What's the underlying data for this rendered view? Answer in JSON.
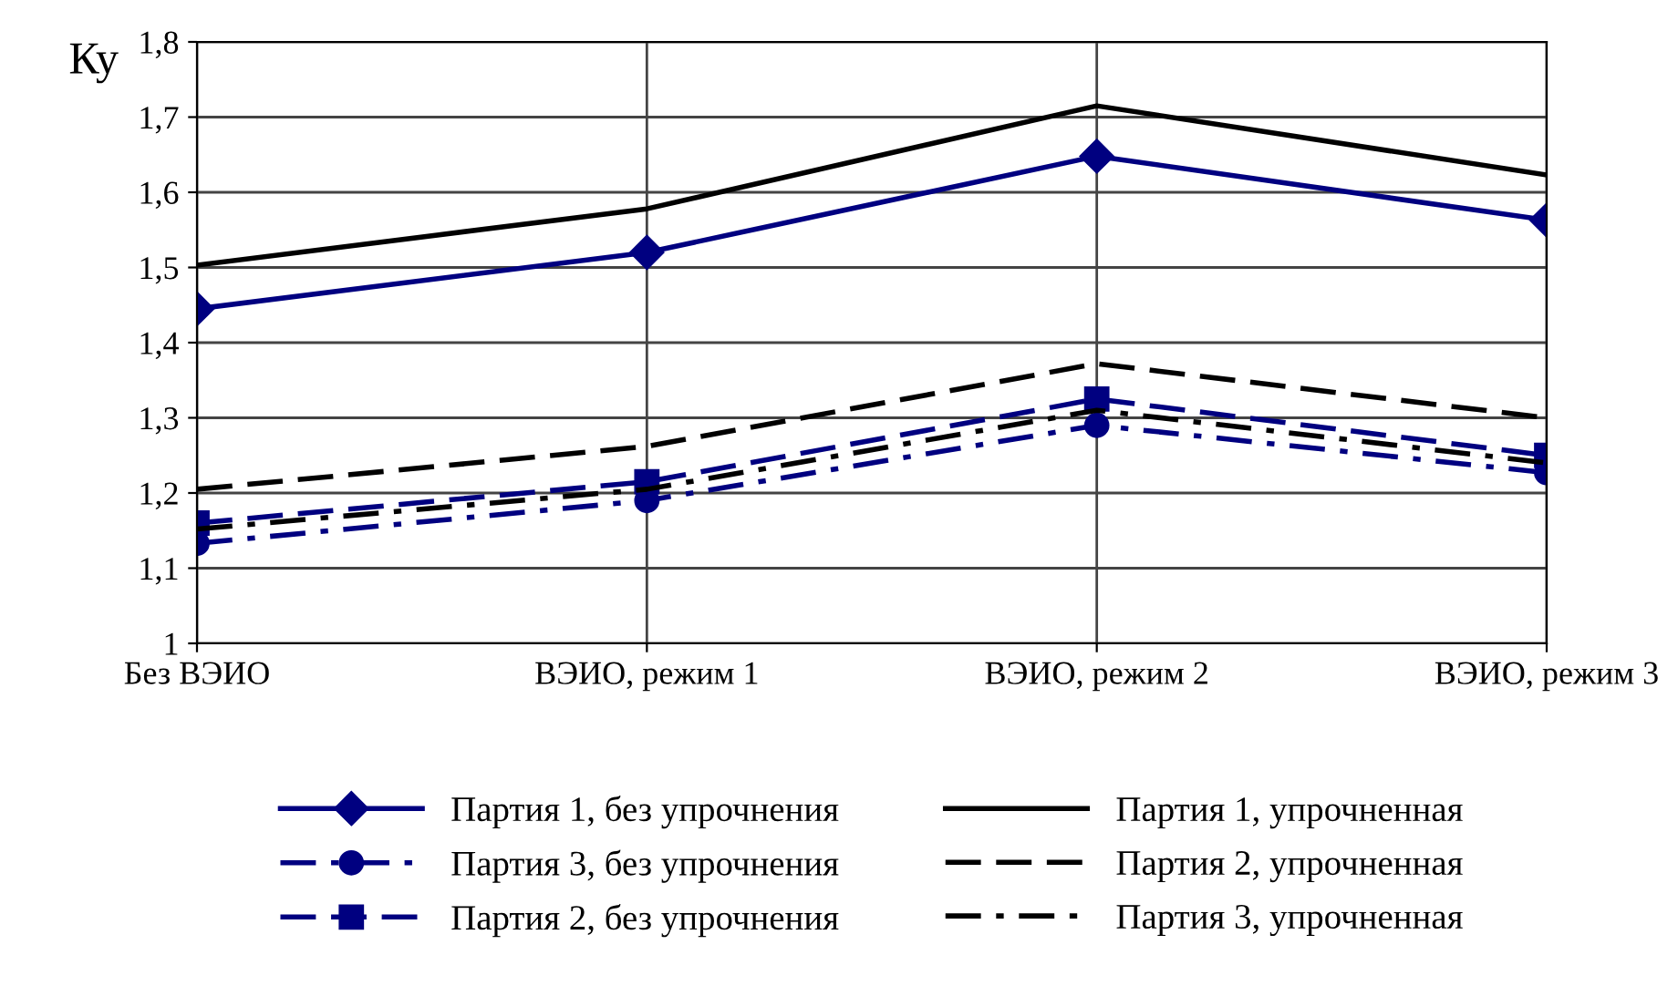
{
  "chart_data": {
    "type": "line",
    "ylabel": "Ку",
    "categories": [
      "Без ВЭИО",
      "ВЭИО, режим 1",
      "ВЭИО, режим 2",
      "ВЭИО, режим 3"
    ],
    "ylim": [
      1,
      1.8
    ],
    "yticks": [
      {
        "value": 1,
        "label": "1"
      },
      {
        "value": 1.1,
        "label": "1,1"
      },
      {
        "value": 1.2,
        "label": "1,2"
      },
      {
        "value": 1.3,
        "label": "1,3"
      },
      {
        "value": 1.4,
        "label": "1,4"
      },
      {
        "value": 1.5,
        "label": "1,5"
      },
      {
        "value": 1.6,
        "label": "1,6"
      },
      {
        "value": 1.7,
        "label": "1,7"
      },
      {
        "value": 1.8,
        "label": "1,8"
      }
    ],
    "grid": true,
    "legend": "bottom",
    "series": [
      {
        "name": "Партия 1, без упрочнения",
        "color": "#000080",
        "marker": "diamond",
        "line_style": "solid",
        "values": [
          1.445,
          1.52,
          1.648,
          1.563
        ]
      },
      {
        "name": "Партия 2, без упрочнения",
        "color": "#000080",
        "marker": "square",
        "line_style": "dashed",
        "values": [
          1.16,
          1.215,
          1.325,
          1.25
        ]
      },
      {
        "name": "Партия 2, упрочненная",
        "color": "#000000",
        "marker": "none",
        "line_style": "dashed",
        "values": [
          1.205,
          1.262,
          1.372,
          1.3
        ]
      },
      {
        "name": "Партия 3, без упрочнения",
        "color": "#000080",
        "marker": "circle",
        "line_style": "dashdot",
        "values": [
          1.133,
          1.19,
          1.29,
          1.227
        ]
      },
      {
        "name": "Партия 1, упрочненная",
        "color": "#000000",
        "marker": "none",
        "line_style": "solid",
        "values": [
          1.503,
          1.578,
          1.715,
          1.623
        ]
      },
      {
        "name": "Партия 3, упрочненная",
        "color": "#000000",
        "marker": "none",
        "line_style": "dashdot",
        "values": [
          1.152,
          1.205,
          1.31,
          1.24
        ]
      }
    ]
  }
}
